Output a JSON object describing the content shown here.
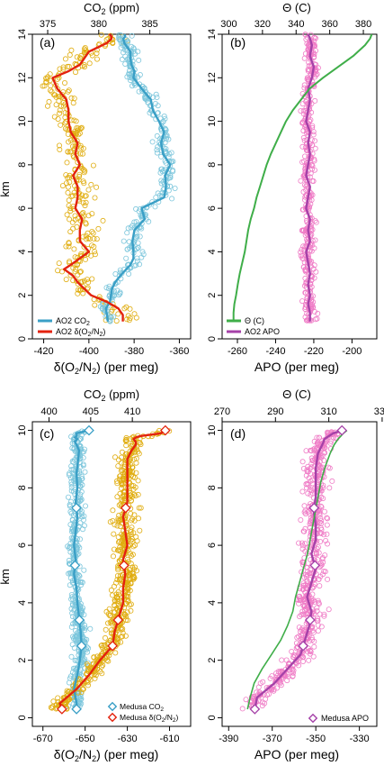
{
  "colors": {
    "co2": "#3a9fc6",
    "co2_points": "#7cc6dc",
    "o2n2": "#e3220e",
    "o2n2_points": "#e0ad10",
    "theta": "#3fae49",
    "apo": "#a541a8",
    "apo_points": "#ef7cc6",
    "axis": "#000000"
  },
  "chart_data": [
    {
      "panel_label": "(a)",
      "type": "line",
      "ylabel": "km",
      "ylim": [
        0,
        14
      ],
      "yticks": [
        "0",
        "2",
        "4",
        "6",
        "8",
        "10",
        "12",
        "14"
      ],
      "bottom_axis": {
        "label": "δ(O₂/N₂) (per meg)",
        "range": [
          -425,
          -355
        ],
        "ticks": [
          "-420",
          "-400",
          "-380",
          "-360"
        ]
      },
      "top_axis": {
        "label": "CO₂ (ppm)",
        "range": [
          373.5,
          389
        ],
        "ticks": [
          "375",
          "380",
          "385"
        ]
      },
      "legend": {
        "position": "bottom-left",
        "entries": [
          "AO2 CO₂",
          "AO2 δ(O₂/N₂)"
        ]
      },
      "series": [
        {
          "name": "AO2 CO₂",
          "axis": "top",
          "x": [
            380.9,
            380.8,
            380.7,
            381.1,
            381.2,
            381.3,
            381.6,
            382.1,
            382.7,
            383.1,
            383.4,
            383.4,
            383.3,
            383.5,
            384.5,
            384.2,
            386.4,
            386.6,
            386.5,
            387.0,
            386.3,
            386.1,
            386.4,
            385.9,
            385.3,
            385.1,
            384.2,
            383.4,
            383.5,
            383.2,
            383.1,
            383.1,
            382.8,
            382.5,
            382.4,
            382.6,
            382.5
          ],
          "y": [
            0.8,
            1.1,
            1.4,
            1.7,
            2.0,
            2.3,
            2.6,
            2.9,
            3.2,
            3.4,
            3.7,
            4.0,
            4.5,
            5.0,
            5.5,
            6.0,
            6.5,
            7.0,
            7.5,
            8.0,
            8.5,
            9.0,
            9.5,
            10.0,
            10.5,
            11.0,
            11.5,
            12.0,
            12.3,
            12.6,
            12.9,
            13.2,
            13.4,
            13.6,
            13.8,
            13.9,
            14.0
          ]
        },
        {
          "name": "AO2 δ(O₂/N₂)",
          "axis": "bottom",
          "x": [
            -385,
            -385,
            -387,
            -392,
            -399,
            -402,
            -405,
            -407,
            -411,
            -408,
            -404,
            -400,
            -404,
            -404,
            -403,
            -406,
            -405,
            -405,
            -407,
            -404,
            -406,
            -405,
            -408,
            -409,
            -409,
            -410,
            -414,
            -416,
            -409,
            -404,
            -402,
            -400,
            -396,
            -392,
            -390,
            -390,
            -391
          ],
          "y": [
            0.8,
            1.1,
            1.4,
            1.7,
            2.0,
            2.3,
            2.6,
            2.9,
            3.2,
            3.4,
            3.7,
            4.0,
            4.5,
            5.0,
            5.5,
            6.0,
            6.5,
            7.0,
            7.5,
            8.0,
            8.5,
            9.0,
            9.5,
            10.0,
            10.5,
            11.0,
            11.5,
            12.0,
            12.3,
            12.6,
            12.9,
            13.2,
            13.4,
            13.6,
            13.8,
            13.9,
            14.0
          ]
        }
      ]
    },
    {
      "panel_label": "(b)",
      "type": "line",
      "ylim": [
        0,
        14
      ],
      "yticks": [
        "0",
        "2",
        "4",
        "6",
        "8",
        "10",
        "12",
        "14"
      ],
      "bottom_axis": {
        "label": "APO (per meg)",
        "range": [
          -268,
          -187
        ],
        "ticks": [
          "-260",
          "-240",
          "-220",
          "-200"
        ]
      },
      "top_axis": {
        "label": "Θ (C)",
        "range": [
          296,
          388
        ],
        "ticks": [
          "300",
          "320",
          "340",
          "360",
          "380"
        ]
      },
      "legend": {
        "position": "bottom-left",
        "entries": [
          "Θ (C)",
          "AO2 APO"
        ]
      },
      "series": [
        {
          "name": "Θ (C)",
          "axis": "top",
          "x": [
            302.8,
            302.8,
            303.3,
            304.3,
            305.3,
            306.5,
            308.0,
            309.5,
            310.5,
            311.5,
            313.0,
            315.0,
            316.5,
            318.5,
            320.5,
            322.5,
            325.0,
            328.0,
            331.0,
            334.0,
            338.0,
            343.0,
            348.0,
            356.0,
            365.0,
            374.0,
            381.0,
            384.0,
            385.0
          ],
          "y": [
            0.8,
            1.2,
            1.6,
            2.0,
            2.5,
            3.0,
            3.5,
            4.0,
            4.5,
            5.0,
            5.5,
            6.0,
            6.5,
            7.0,
            7.5,
            8.0,
            8.5,
            9.0,
            9.5,
            10.0,
            10.5,
            11.0,
            11.5,
            12.0,
            12.5,
            13.0,
            13.5,
            13.8,
            14.0
          ]
        },
        {
          "name": "AO2 APO",
          "axis": "bottom",
          "x": [
            -222,
            -222,
            -223,
            -222,
            -223,
            -222,
            -223,
            -224,
            -222,
            -223,
            -222,
            -224,
            -223,
            -222,
            -224,
            -223,
            -222,
            -223,
            -222,
            -224,
            -223,
            -222,
            -223,
            -221,
            -220,
            -222,
            -221,
            -222,
            -223
          ],
          "y": [
            0.8,
            1.2,
            1.6,
            2.0,
            2.5,
            3.0,
            3.5,
            4.0,
            4.5,
            5.0,
            5.5,
            6.0,
            6.5,
            7.0,
            7.5,
            8.0,
            8.5,
            9.0,
            9.5,
            10.0,
            10.5,
            11.0,
            11.5,
            12.0,
            12.5,
            13.0,
            13.5,
            13.8,
            14.0
          ]
        }
      ]
    },
    {
      "panel_label": "(c)",
      "type": "line",
      "ylabel": "km",
      "ylim": [
        -0.3,
        10.3
      ],
      "yticks": [
        "0",
        "2",
        "4",
        "6",
        "8",
        "10"
      ],
      "bottom_axis": {
        "label": "δ(O₂/N₂) (per meg)",
        "range": [
          -675,
          -600
        ],
        "ticks": [
          "-670",
          "-650",
          "-630",
          "-610"
        ]
      },
      "top_axis": {
        "label": "CO₂ (ppm)",
        "range": [
          398,
          417
        ],
        "ticks": [
          "400",
          "405",
          "410"
        ]
      },
      "legend": {
        "position": "bottom-right",
        "entries": [
          "Medusa CO₂",
          "Medusa δ(O₂/N₂)"
        ]
      },
      "series": [
        {
          "name": "Medusa CO₂",
          "axis": "top",
          "x": [
            403.3,
            403.3,
            403.0,
            403.4,
            403.7,
            403.9,
            403.8,
            403.6,
            403.4,
            403.3,
            403.0,
            403.2,
            403.0,
            403.2,
            403.4,
            403.2,
            403.4,
            403.3,
            403.5,
            403.6,
            403.3,
            403.1,
            403.4,
            403.1,
            403.3,
            403.3,
            404.8
          ],
          "y": [
            0.3,
            0.5,
            1.0,
            1.5,
            2.0,
            2.5,
            3.0,
            3.5,
            4.0,
            4.5,
            5.0,
            5.5,
            6.0,
            6.5,
            7.0,
            7.5,
            8.0,
            8.5,
            9.0,
            9.3,
            9.5,
            9.6,
            9.7,
            9.75,
            9.8,
            9.9,
            10.0
          ]
        },
        {
          "name": "Medusa δ(O₂/N₂)",
          "axis": "bottom",
          "x": [
            -661,
            -662,
            -654,
            -648,
            -643,
            -637,
            -636,
            -634,
            -632,
            -632,
            -631,
            -632,
            -630,
            -631,
            -632,
            -630,
            -630,
            -630,
            -630,
            -628,
            -626,
            -626,
            -627,
            -626,
            -624,
            -614,
            -612
          ],
          "y": [
            0.3,
            0.5,
            1.0,
            1.5,
            2.0,
            2.5,
            3.0,
            3.5,
            4.0,
            4.5,
            5.0,
            5.5,
            6.0,
            6.5,
            7.0,
            7.5,
            8.0,
            8.5,
            9.0,
            9.3,
            9.5,
            9.6,
            9.7,
            9.75,
            9.8,
            9.9,
            10.0
          ]
        }
      ]
    },
    {
      "panel_label": "(d)",
      "type": "line",
      "ylim": [
        -0.3,
        10.3
      ],
      "yticks": [
        "0",
        "2",
        "4",
        "6",
        "8",
        "10"
      ],
      "bottom_axis": {
        "label": "APO (per meg)",
        "range": [
          -393,
          -322
        ],
        "ticks": [
          "-390",
          "-370",
          "-350",
          "-330"
        ]
      },
      "top_axis": {
        "label": "Θ (C)",
        "range": [
          270,
          328
        ],
        "ticks": [
          "270",
          "290",
          "310",
          "330"
        ]
      },
      "legend": {
        "position": "bottom-right",
        "entries": [
          "Medusa APO"
        ]
      },
      "series": [
        {
          "name": "Θ (C)",
          "axis": "top",
          "x": [
            279.5,
            280.5,
            282.0,
            285.0,
            288.5,
            292.0,
            294.5,
            296.5,
            297.5,
            299.0,
            300.5,
            302.0,
            303.0,
            304.0,
            305.0,
            306.0,
            307.0,
            308.5,
            310.5,
            312.0,
            313.5,
            314.5,
            315.5,
            316.8
          ],
          "y": [
            0.3,
            0.7,
            1.2,
            1.7,
            2.2,
            2.7,
            3.2,
            3.7,
            4.2,
            4.7,
            5.2,
            5.7,
            6.2,
            6.7,
            7.2,
            7.7,
            8.2,
            8.7,
            9.2,
            9.5,
            9.7,
            9.8,
            9.9,
            10.0
          ]
        },
        {
          "name": "Medusa APO",
          "axis": "bottom",
          "x": [
            -378,
            -377,
            -369,
            -363,
            -357,
            -355,
            -353,
            -352,
            -354,
            -352,
            -350,
            -352,
            -350,
            -350,
            -351,
            -350,
            -350,
            -350,
            -349,
            -347,
            -346,
            -344,
            -342,
            -338
          ],
          "y": [
            0.3,
            0.7,
            1.2,
            1.7,
            2.2,
            2.7,
            3.2,
            3.7,
            4.2,
            4.7,
            5.2,
            5.7,
            6.2,
            6.7,
            7.2,
            7.7,
            8.2,
            8.7,
            9.2,
            9.5,
            9.7,
            9.8,
            9.9,
            10.0
          ]
        }
      ]
    }
  ]
}
